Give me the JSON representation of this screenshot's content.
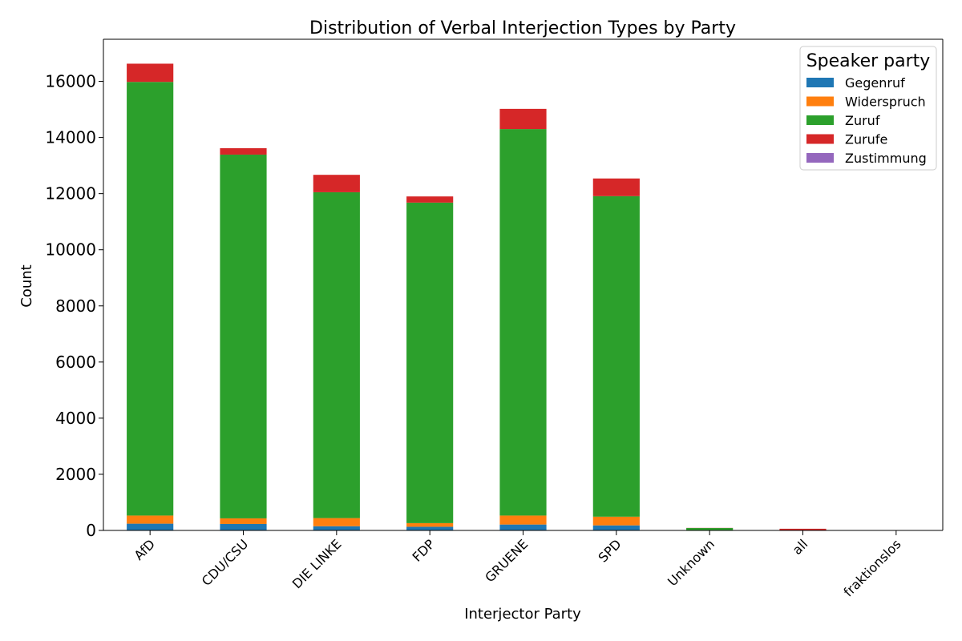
{
  "chart_data": {
    "type": "bar",
    "stacked": true,
    "title": "Distribution of Verbal Interjection Types by Party",
    "xlabel": "Interjector Party",
    "ylabel": "Count",
    "ylim": [
      0,
      17500
    ],
    "yticks": [
      0,
      2000,
      4000,
      6000,
      8000,
      10000,
      12000,
      14000,
      16000
    ],
    "categories": [
      "AfD",
      "CDU/CSU",
      "DIE LINKE",
      "FDP",
      "GRUENE",
      "SPD",
      "Unknown",
      "all",
      "fraktionslos"
    ],
    "legend_title": "Speaker party",
    "legend_position": "top-right",
    "grid": false,
    "series": [
      {
        "name": "Gegenruf",
        "color": "#1f77b4",
        "values": [
          240,
          230,
          150,
          130,
          210,
          180,
          0,
          0,
          0
        ]
      },
      {
        "name": "Widerspruch",
        "color": "#ff7f0e",
        "values": [
          290,
          200,
          290,
          130,
          320,
          310,
          5,
          0,
          0
        ]
      },
      {
        "name": "Zuruf",
        "color": "#2ca02c",
        "values": [
          15450,
          12960,
          11610,
          11420,
          13770,
          11420,
          80,
          10,
          10
        ]
      },
      {
        "name": "Zurufe",
        "color": "#d62728",
        "values": [
          650,
          230,
          620,
          220,
          720,
          630,
          5,
          50,
          0
        ]
      },
      {
        "name": "Zustimmung",
        "color": "#9467bd",
        "values": [
          0,
          0,
          0,
          0,
          0,
          0,
          0,
          0,
          0
        ]
      }
    ]
  }
}
